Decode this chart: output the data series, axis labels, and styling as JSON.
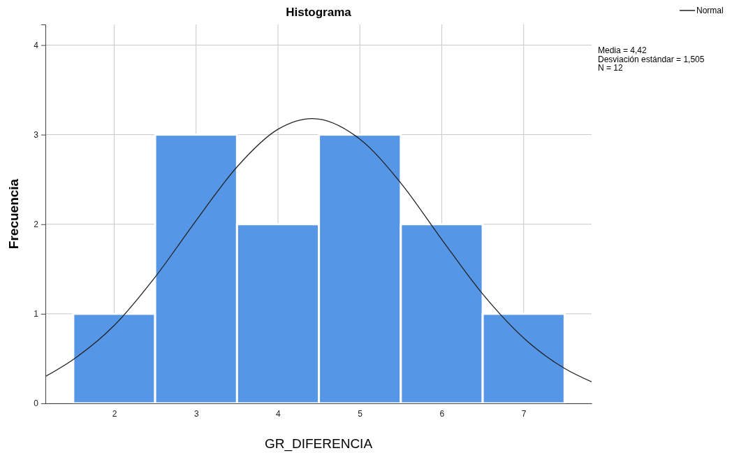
{
  "chart_data": {
    "type": "histogram",
    "title": "Histograma",
    "xlabel": "GR_DIFERENCIA",
    "ylabel": "Frecuencia",
    "xlim": [
      1.16,
      7.83
    ],
    "xticks": [
      2,
      3,
      4,
      5,
      6,
      7
    ],
    "ylim": [
      0,
      4.23
    ],
    "yticks": [
      0,
      1,
      2,
      3,
      4
    ],
    "grid": true,
    "legend": "top right",
    "annotations": [
      "Media = 4,42",
      "Desviación estándar = 1,505",
      "N = 12"
    ],
    "series": [
      {
        "color": "#5596e6",
        "bins": [
          1.5,
          2.5,
          3.5,
          4.5,
          5.5,
          6.5,
          7.5
        ],
        "values": [
          1,
          3,
          2,
          3,
          2,
          1
        ]
      },
      {
        "type": "line",
        "name": "Normal",
        "color": "#222222",
        "line_style": "solid",
        "x": [
          1.16,
          1.5,
          2,
          2.5,
          3,
          3.5,
          4,
          4.42,
          5,
          5.5,
          6,
          6.5,
          7,
          7.5,
          7.83
        ],
        "values": [
          0.3,
          0.49,
          0.87,
          1.41,
          2.04,
          2.64,
          3.06,
          3.18,
          2.95,
          2.46,
          1.83,
          1.22,
          0.73,
          0.39,
          0.24
        ]
      }
    ]
  }
}
